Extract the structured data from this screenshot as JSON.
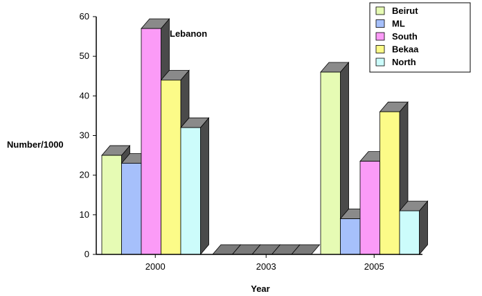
{
  "chart_data": {
    "type": "bar",
    "title": "",
    "annotation": "Lebanon",
    "xlabel": "Year",
    "ylabel": "Number/1000",
    "ylim": [
      0,
      60
    ],
    "yticks": [
      0,
      10,
      20,
      30,
      40,
      50,
      60
    ],
    "categories": [
      "2000",
      "2003",
      "2005"
    ],
    "series": [
      {
        "name": "Beirut",
        "color": "#e6fbb4",
        "values": [
          25,
          0,
          46
        ]
      },
      {
        "name": "ML",
        "color": "#a6c0fb",
        "values": [
          23,
          0,
          9
        ]
      },
      {
        "name": "South",
        "color": "#fb9bf7",
        "values": [
          57,
          0,
          23.5
        ]
      },
      {
        "name": "Bekaa",
        "color": "#fcfb88",
        "values": [
          44,
          0,
          36
        ]
      },
      {
        "name": "North",
        "color": "#ccfcfb",
        "values": [
          32,
          0,
          11
        ]
      }
    ],
    "legend_position": "top-right",
    "three_d": true,
    "grid": false
  }
}
